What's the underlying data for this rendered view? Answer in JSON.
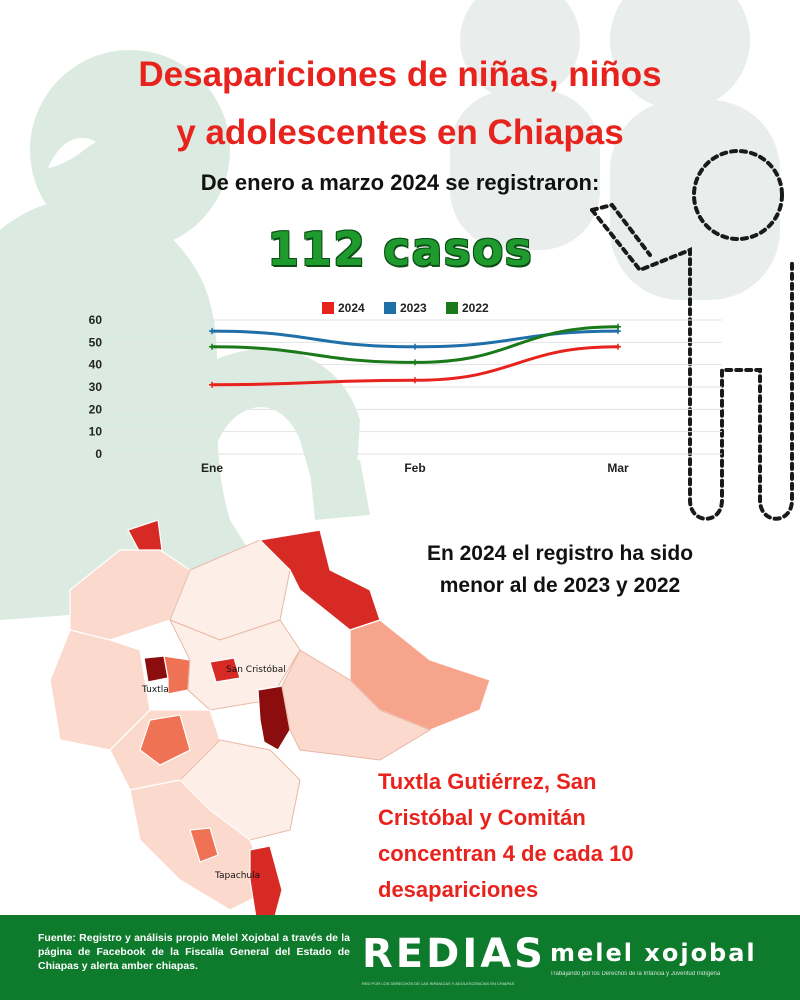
{
  "title_lines": [
    "Desapariciones de niñas, niños",
    "y adolescentes en Chiapas"
  ],
  "subtitle": "De enero a marzo 2024 se registraron:",
  "big_count": "112 casos",
  "chart_data": {
    "type": "line",
    "categories": [
      "Ene",
      "Feb",
      "Mar"
    ],
    "series": [
      {
        "name": "2024",
        "color": "#e8221c",
        "values": [
          31,
          33,
          48
        ]
      },
      {
        "name": "2023",
        "color": "#1f6fa8",
        "values": [
          55,
          48,
          55
        ]
      },
      {
        "name": "2022",
        "color": "#1a7a1a",
        "values": [
          48,
          41,
          57
        ]
      }
    ],
    "yticks": [
      0,
      10,
      20,
      30,
      40,
      50,
      60
    ],
    "ylim": [
      0,
      60
    ],
    "legend_position": "top-center",
    "grid": true
  },
  "comparison_note": [
    "En 2024 el registro ha sido",
    "menor al de 2023 y 2022"
  ],
  "map": {
    "labels": {
      "tuxtla": "Tuxtla",
      "san_cristobal": "San Cristóbal",
      "tapachula": "Tapachula"
    },
    "colors": {
      "dark": "#8b0d0d",
      "strong": "#d82a25",
      "medium": "#ef7255",
      "light": "#f6a58c",
      "pale": "#fbd9cc",
      "faint": "#fdeee7"
    }
  },
  "concentration_note": [
    "Tuxtla Gutiérrez,  San",
    "Cristóbal y Comitán",
    "concentran  4 de cada 10",
    "desapariciones"
  ],
  "footer": {
    "source": "Fuente: Registro y análisis propio Melel Xojobal a través de la página de Facebook de la Fiscalía General del Estado de Chiapas y alerta amber chiapas.",
    "redias_logo": "REDIAS",
    "redias_tagline": "RED POR LOS DERECHOS DE LAS INFANCIAS Y ADOLESCENCIAS EN CHIAPAS",
    "melel_logo": "melel xojobal",
    "melel_tagline": "Trabajando por los Derechos de la Infancia y Juventud Indígena"
  },
  "colors": {
    "accent_red": "#e8221c",
    "accent_green": "#1f9a2d",
    "footer_green": "#0e7a2c",
    "bg_mint": "#dcebe2",
    "bg_gray": "#e9edeb"
  }
}
